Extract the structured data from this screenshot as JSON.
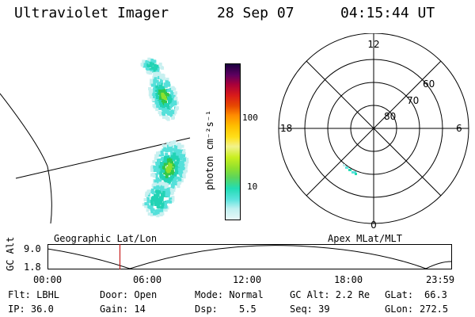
{
  "header": {
    "title": "Ultraviolet Imager",
    "date": "28 Sep 07",
    "time": "04:15:44 UT"
  },
  "colorbar": {
    "label": "photon cm⁻²s⁻¹",
    "tick_labels": [
      "100",
      "10"
    ],
    "scale": "log",
    "colors": [
      "#e8f8f8",
      "#bff0f0",
      "#59e3dd",
      "#22dcb4",
      "#5cd55c",
      "#8fe02e",
      "#c9ef20",
      "#f2f28c",
      "#ffe01a",
      "#ffc000",
      "#ff8c00",
      "#e84a00",
      "#d81a1a",
      "#a8003a",
      "#5e0060",
      "#1c0040"
    ]
  },
  "polar_plot": {
    "mlt_labels": {
      "top": "12",
      "left": "18",
      "right": "6",
      "bottom": "0"
    },
    "lat_labels": [
      "60",
      "70",
      "80"
    ]
  },
  "timeline": {
    "left_title": "Geographic Lat/Lon",
    "right_title": "Apex MLat/MLT",
    "y_label": "GC Alt",
    "y_ticks": [
      "9.0",
      "1.8"
    ],
    "x_ticks": [
      "00:00",
      "06:00",
      "12:00",
      "18:00",
      "23:59"
    ],
    "cursor_color": "#c00000",
    "cursor_time_fraction": 0.178
  },
  "info": {
    "flt": "Flt: LBHL",
    "ip": "IP: 36.0",
    "door": "Door: Open",
    "gain": "Gain: 14",
    "mode": "Mode: Normal",
    "dsp_label": "Dsp:",
    "dsp_value": "5.5",
    "gc_alt": "GC Alt: 2.2 Re",
    "seq": "Seq: 39",
    "glat_label": "GLat:",
    "glat_value": "66.3",
    "glon_label": "GLon:",
    "glon_value": "272.5"
  },
  "map_colors": {
    "light": "#c8f0f0",
    "cyan": "#55e0da",
    "teal": "#22d3b4",
    "green": "#30c84a",
    "lime": "#8fe02e"
  }
}
